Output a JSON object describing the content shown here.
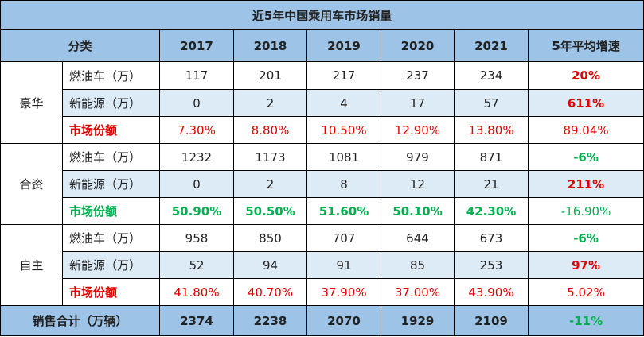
{
  "title": "近5年中国乘用车市场销量",
  "header": {
    "category": "分类",
    "years": [
      "2017",
      "2018",
      "2019",
      "2020",
      "2021"
    ],
    "growth": "5年平均增速"
  },
  "groups": [
    {
      "name": "豪华",
      "rows": [
        {
          "label": "燃油车（万）",
          "values": [
            "117",
            "201",
            "217",
            "237",
            "234"
          ],
          "growth": "20%"
        },
        {
          "label": "新能源（万）",
          "values": [
            "0",
            "2",
            "4",
            "17",
            "57"
          ],
          "growth": "611%"
        },
        {
          "label": "市场份额",
          "values": [
            "7.30%",
            "8.80%",
            "10.50%",
            "12.90%",
            "13.80%"
          ],
          "growth": "89.04%"
        }
      ]
    },
    {
      "name": "合资",
      "rows": [
        {
          "label": "燃油车（万）",
          "values": [
            "1232",
            "1173",
            "1081",
            "979",
            "871"
          ],
          "growth": "-6%"
        },
        {
          "label": "新能源（万）",
          "values": [
            "0",
            "2",
            "8",
            "12",
            "21"
          ],
          "growth": "211%"
        },
        {
          "label": "市场份额",
          "values": [
            "50.90%",
            "50.50%",
            "51.60%",
            "50.10%",
            "42.30%"
          ],
          "growth": "-16.90%"
        }
      ]
    },
    {
      "name": "自主",
      "rows": [
        {
          "label": "燃油车（万）",
          "values": [
            "958",
            "850",
            "707",
            "644",
            "673"
          ],
          "growth": "-6%"
        },
        {
          "label": "新能源（万）",
          "values": [
            "52",
            "94",
            "91",
            "85",
            "253"
          ],
          "growth": "97%"
        },
        {
          "label": "市场份额",
          "values": [
            "41.80%",
            "40.70%",
            "37.90%",
            "37.00%",
            "43.90%"
          ],
          "growth": "5.02%"
        }
      ]
    }
  ],
  "total": {
    "label": "销售合计（万辆）",
    "values": [
      "2374",
      "2238",
      "2070",
      "1929",
      "2109"
    ],
    "growth": "-11%"
  },
  "colors": {
    "header_bg": "#9dc3e6",
    "alt_row_bg": "#ddebf7",
    "positive_red": "#e00000",
    "negative_green": "#00b050"
  }
}
